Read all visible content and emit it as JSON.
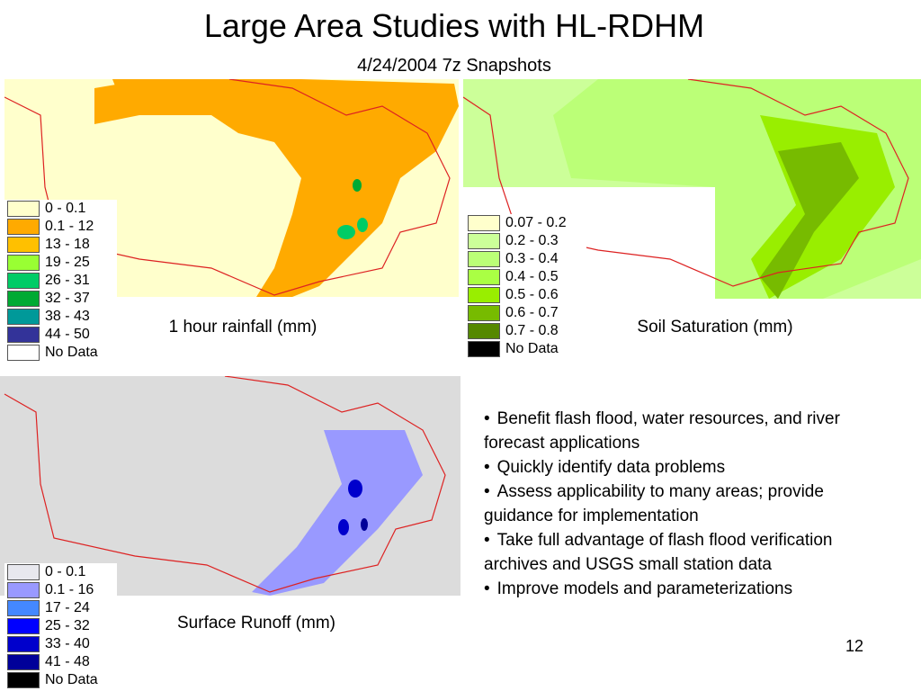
{
  "title": "Large Area Studies with HL-RDHM",
  "subtitle": "4/24/2004 7z Snapshots",
  "maps": [
    {
      "caption": "1 hour rainfall (mm)",
      "legend": [
        {
          "label": "0 - 0.1",
          "color": "#ffffcc"
        },
        {
          "label": "0.1 - 12",
          "color": "#ffaa00"
        },
        {
          "label": "13 - 18",
          "color": "#ffc000"
        },
        {
          "label": "19 - 25",
          "color": "#99ff33"
        },
        {
          "label": "26 - 31",
          "color": "#00cc66"
        },
        {
          "label": "32 - 37",
          "color": "#00aa33"
        },
        {
          "label": "38 - 43",
          "color": "#009999"
        },
        {
          "label": "44 - 50",
          "color": "#333399"
        },
        {
          "label": "No Data",
          "color": "#ffffff"
        }
      ]
    },
    {
      "caption": "Soil Saturation (mm)",
      "legend": [
        {
          "label": "0.07 - 0.2",
          "color": "#ffffcc"
        },
        {
          "label": "0.2 - 0.3",
          "color": "#ccff99"
        },
        {
          "label": "0.3 - 0.4",
          "color": "#bbff77"
        },
        {
          "label": "0.4 - 0.5",
          "color": "#aaff44"
        },
        {
          "label": "0.5 - 0.6",
          "color": "#99ee00"
        },
        {
          "label": "0.6 - 0.7",
          "color": "#77bb00"
        },
        {
          "label": "0.7 - 0.8",
          "color": "#558800"
        },
        {
          "label": "No Data",
          "color": "#000000"
        }
      ]
    },
    {
      "caption": "Surface Runoff (mm)",
      "legend": [
        {
          "label": "0 - 0.1",
          "color": "#e8e8ee"
        },
        {
          "label": "0.1 - 16",
          "color": "#9999ff"
        },
        {
          "label": "17 - 24",
          "color": "#4488ff"
        },
        {
          "label": "25 - 32",
          "color": "#0000ff"
        },
        {
          "label": "33 - 40",
          "color": "#0000cc"
        },
        {
          "label": "41 - 48",
          "color": "#000099"
        },
        {
          "label": "No Data",
          "color": "#000000"
        }
      ]
    }
  ],
  "bullets": [
    "Benefit flash flood, water resources, and river forecast applications",
    "Quickly identify data problems",
    "Assess applicability to many areas; provide guidance for implementation",
    "Take full advantage of flash flood verification archives and USGS small station data",
    "Improve models and parameterizations"
  ],
  "page_number": "12"
}
